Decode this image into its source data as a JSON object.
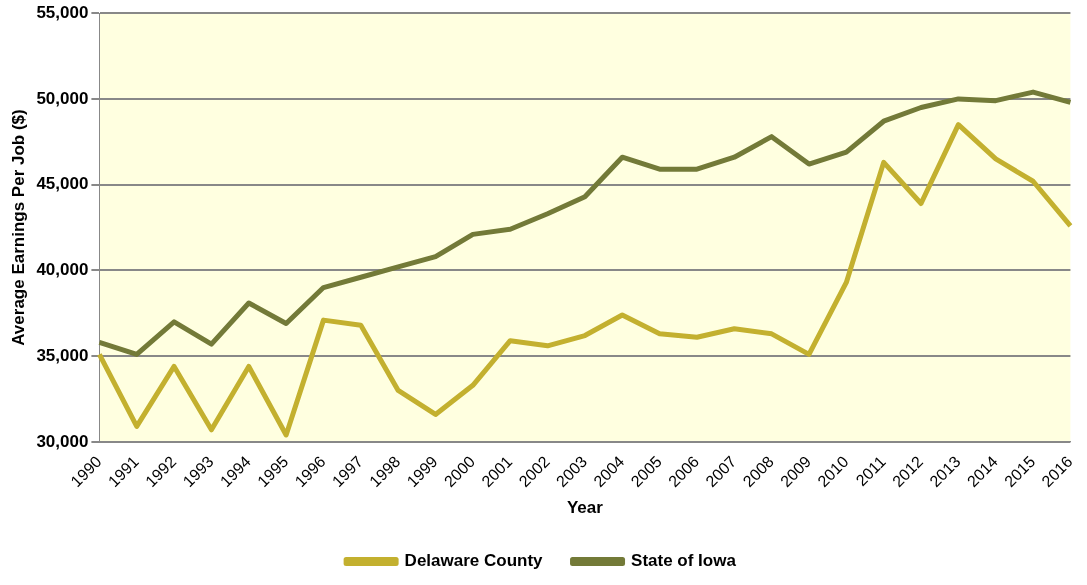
{
  "chart_data": {
    "type": "line",
    "xlabel": "Year",
    "ylabel": "Average Earnings Per Job ($)",
    "categories": [
      "1990",
      "1991",
      "1992",
      "1993",
      "1994",
      "1995",
      "1996",
      "1997",
      "1998",
      "1999",
      "2000",
      "2001",
      "2002",
      "2003",
      "2004",
      "2005",
      "2006",
      "2007",
      "2008",
      "2009",
      "2010",
      "2011",
      "2012",
      "2013",
      "2014",
      "2015",
      "2016"
    ],
    "series": [
      {
        "name": "Delaware County",
        "color": "#c3b02f",
        "values": [
          35100,
          30900,
          34400,
          30700,
          34400,
          30400,
          37100,
          36800,
          33000,
          31600,
          33300,
          35900,
          35600,
          36200,
          37400,
          36300,
          36100,
          36600,
          36300,
          35100,
          39300,
          46300,
          43900,
          48500,
          46500,
          45200,
          42600
        ]
      },
      {
        "name": "State of Iowa",
        "color": "#737a38",
        "values": [
          35800,
          35100,
          37000,
          35700,
          38100,
          36900,
          39000,
          39600,
          40200,
          40800,
          42100,
          42400,
          43300,
          44300,
          46600,
          45900,
          45900,
          46600,
          47800,
          46200,
          46900,
          48700,
          49500,
          50000,
          49900,
          50400,
          49800
        ]
      }
    ],
    "ylim": [
      30000,
      55000
    ],
    "yticks": [
      {
        "value": 30000,
        "label": "30,000"
      },
      {
        "value": 35000,
        "label": "35,000"
      },
      {
        "value": 40000,
        "label": "40,000"
      },
      {
        "value": 45000,
        "label": "45,000"
      },
      {
        "value": 50000,
        "label": "50,000"
      },
      {
        "value": 55000,
        "label": "55,000"
      }
    ],
    "grid": "y",
    "legend": "bottom",
    "marker": "none",
    "line_style": "solid"
  }
}
